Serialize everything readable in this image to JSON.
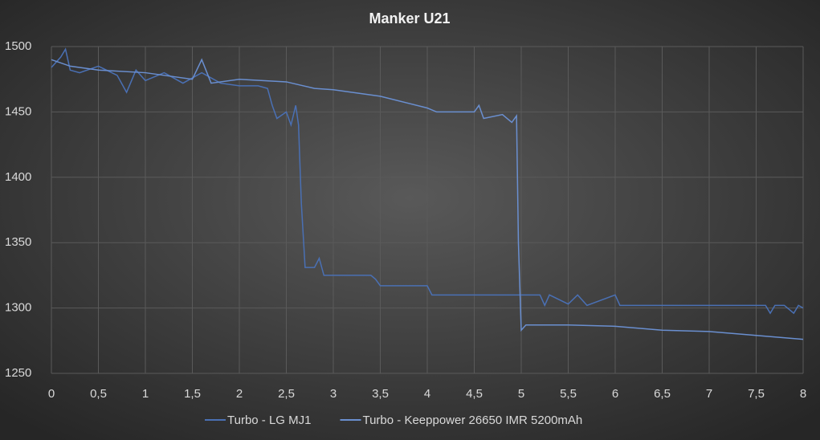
{
  "chart_data": {
    "type": "line",
    "title": "Manker  U21",
    "series": [
      {
        "name": "Turbo - LG MJ1",
        "color": "#4a70b4",
        "x": [
          0,
          0.1,
          0.15,
          0.2,
          0.3,
          0.5,
          0.7,
          0.8,
          0.9,
          1.0,
          1.2,
          1.4,
          1.5,
          1.6,
          1.8,
          2.0,
          2.2,
          2.3,
          2.35,
          2.4,
          2.5,
          2.55,
          2.6,
          2.63,
          2.66,
          2.7,
          2.8,
          2.85,
          2.9,
          3.4,
          3.45,
          3.5,
          4.0,
          4.05,
          4.1,
          5.2,
          5.25,
          5.3,
          5.5,
          5.6,
          5.7,
          6.0,
          6.05,
          7.6,
          7.65,
          7.7,
          7.8,
          7.9,
          7.95,
          8.0
        ],
        "values": [
          1484,
          1492,
          1498,
          1482,
          1480,
          1485,
          1478,
          1465,
          1482,
          1474,
          1480,
          1472,
          1476,
          1480,
          1472,
          1470,
          1470,
          1468,
          1455,
          1445,
          1450,
          1440,
          1455,
          1440,
          1380,
          1331,
          1331,
          1338,
          1325,
          1325,
          1322,
          1317,
          1317,
          1310,
          1310,
          1310,
          1302,
          1310,
          1303,
          1310,
          1302,
          1310,
          1302,
          1302,
          1296,
          1302,
          1302,
          1296,
          1302,
          1300
        ]
      },
      {
        "name": "Turbo - Keeppower 26650 IMR 5200mAh",
        "color": "#6a8fd0",
        "x": [
          0,
          0.2,
          0.5,
          1.0,
          1.5,
          1.6,
          1.7,
          2.0,
          2.5,
          2.8,
          3.0,
          3.5,
          4.0,
          4.1,
          4.5,
          4.55,
          4.6,
          4.8,
          4.9,
          4.95,
          4.97,
          5.0,
          5.05,
          5.5,
          6.0,
          6.5,
          7.0,
          7.5,
          8.0
        ],
        "values": [
          1490,
          1485,
          1482,
          1480,
          1475,
          1490,
          1472,
          1475,
          1473,
          1468,
          1467,
          1462,
          1453,
          1450,
          1450,
          1455,
          1445,
          1448,
          1442,
          1447,
          1350,
          1283,
          1287,
          1287,
          1286,
          1283,
          1282,
          1279,
          1276
        ]
      }
    ],
    "xlim": [
      0,
      8
    ],
    "xticks": [
      0,
      {
        "value": 0.5,
        "label": "0,5"
      },
      1,
      {
        "value": 1.5,
        "label": "1,5"
      },
      2,
      {
        "value": 2.5,
        "label": "2,5"
      },
      3,
      {
        "value": 3.5,
        "label": "3,5"
      },
      4,
      {
        "value": 4.5,
        "label": "4,5"
      },
      5,
      {
        "value": 5.5,
        "label": "5,5"
      },
      6,
      {
        "value": 6.5,
        "label": "6,5"
      },
      7,
      {
        "value": 7.5,
        "label": "7,5"
      },
      8
    ],
    "ylim": [
      1250,
      1500
    ],
    "yticks": [
      1250,
      1300,
      1350,
      1400,
      1450,
      1500
    ],
    "grid": true
  }
}
